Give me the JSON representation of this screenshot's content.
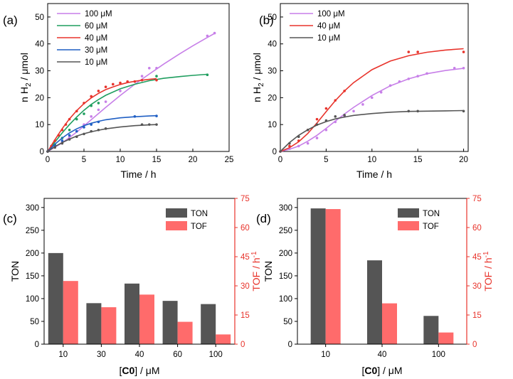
{
  "figure": {
    "colors": {
      "100uM": "#c77fe8",
      "60uM": "#1f9e5f",
      "40uM": "#e8332b",
      "30uM": "#1f5fc4",
      "10uM": "#555555",
      "TON": "#555555",
      "TOF": "#ff6b6b",
      "tof_axis": "#e8332b"
    }
  },
  "chart_data": [
    {
      "panel": "(a)",
      "type": "line",
      "xlabel": "Time / h",
      "ylabel_main": "n H",
      "ylabel_sub": "2",
      "ylabel_tail": " / μmol",
      "xlim": [
        0,
        25
      ],
      "ylim": [
        0,
        55
      ],
      "xticks": [
        "0",
        "5",
        "10",
        "15",
        "20",
        "25"
      ],
      "yticks": [
        "0",
        "10",
        "20",
        "30",
        "40",
        "50"
      ],
      "xtick_values": [
        0,
        5,
        10,
        15,
        20,
        25
      ],
      "ytick_values": [
        0,
        10,
        20,
        30,
        40,
        50
      ],
      "legend_position": "top-left",
      "series": [
        {
          "name": "100 μM",
          "color_key": "100uM",
          "x": [
            0,
            1,
            2,
            3,
            4,
            5,
            6,
            7,
            8,
            10,
            12,
            13,
            14,
            15,
            22,
            23
          ],
          "y": [
            0,
            1.5,
            3.5,
            5.5,
            7.5,
            10,
            13,
            15.5,
            18.5,
            22.5,
            26,
            28,
            31,
            31,
            43,
            44
          ],
          "fit_x": [
            0,
            2,
            4,
            6,
            8,
            10,
            12,
            14,
            16,
            18,
            20,
            22,
            23
          ],
          "fit_y": [
            0,
            3.2,
            7.2,
            11.8,
            16.4,
            20.8,
            25,
            28.8,
            32.5,
            36,
            39.3,
            42.4,
            43.9
          ]
        },
        {
          "name": "60 μM",
          "color_key": "60uM",
          "x": [
            0,
            1,
            2,
            3,
            4,
            5,
            6,
            7,
            15,
            22
          ],
          "y": [
            0,
            2.5,
            5,
            8,
            12,
            14,
            17,
            18,
            28,
            28.5
          ],
          "fit_x": [
            0,
            1,
            2,
            3,
            4,
            5,
            6,
            7,
            8,
            10,
            12,
            14,
            16,
            18,
            20,
            22
          ],
          "fit_y": [
            0,
            3.5,
            6.9,
            10,
            12.8,
            15.3,
            17.5,
            19.3,
            20.9,
            23.3,
            25,
            26.3,
            27.2,
            27.8,
            28.3,
            28.7
          ]
        },
        {
          "name": "40 μM",
          "color_key": "40uM",
          "x": [
            0,
            0.5,
            1,
            1.5,
            2,
            2.5,
            3,
            4,
            5,
            6,
            7,
            8,
            9,
            10,
            11,
            12,
            13,
            15
          ],
          "y": [
            0,
            2,
            4,
            6,
            8,
            10,
            12,
            15,
            18,
            20.5,
            22.5,
            24,
            25,
            25.5,
            26,
            26,
            26.5,
            26.5
          ],
          "fit_x": [
            0,
            1,
            2,
            3,
            4,
            5,
            6,
            7,
            8,
            9,
            10,
            11,
            12,
            13,
            14,
            15
          ],
          "fit_y": [
            0,
            4.4,
            8.5,
            12.1,
            15.2,
            17.8,
            19.9,
            21.6,
            23,
            24,
            24.9,
            25.6,
            26.1,
            26.5,
            26.8,
            27.1
          ]
        },
        {
          "name": "30 μM",
          "color_key": "30uM",
          "x": [
            0,
            1,
            2,
            3,
            4,
            5,
            6,
            7,
            12,
            15
          ],
          "y": [
            0,
            2,
            4,
            6,
            7.5,
            9,
            10,
            11,
            13,
            13.2
          ],
          "fit_x": [
            0,
            1,
            2,
            3,
            4,
            5,
            6,
            7,
            8,
            10,
            12,
            14,
            15
          ],
          "fit_y": [
            0,
            2.7,
            5,
            6.9,
            8.4,
            9.6,
            10.5,
            11.2,
            11.8,
            12.5,
            12.9,
            13.2,
            13.3
          ]
        },
        {
          "name": "10 μM",
          "color_key": "10uM",
          "x": [
            0,
            1,
            2,
            3,
            4,
            5,
            6,
            7,
            8,
            13,
            14,
            15
          ],
          "y": [
            0,
            1.5,
            3,
            4.5,
            5.5,
            6.5,
            7.5,
            8,
            8.5,
            10,
            10,
            10
          ],
          "fit_x": [
            0,
            1,
            2,
            3,
            4,
            5,
            6,
            7,
            8,
            10,
            12,
            14,
            15
          ],
          "fit_y": [
            0,
            1.8,
            3.3,
            4.6,
            5.7,
            6.6,
            7.3,
            7.9,
            8.4,
            9.1,
            9.6,
            9.9,
            10
          ]
        }
      ]
    },
    {
      "panel": "(b)",
      "type": "line",
      "xlabel": "Time / h",
      "ylabel_main": "n H",
      "ylabel_sub": "2",
      "ylabel_tail": " / μmol",
      "xlim": [
        0,
        20.5
      ],
      "ylim": [
        0,
        55
      ],
      "xticks": [
        "0",
        "5",
        "10",
        "15",
        "20"
      ],
      "yticks": [
        "0",
        "10",
        "20",
        "30",
        "40",
        "50"
      ],
      "xtick_values": [
        0,
        5,
        10,
        15,
        20
      ],
      "ytick_values": [
        0,
        10,
        20,
        30,
        40,
        50
      ],
      "legend_position": "top-left",
      "series": [
        {
          "name": "100 μM",
          "color_key": "100uM",
          "x": [
            0,
            1,
            2,
            3,
            4,
            5,
            6,
            7,
            8,
            9,
            10,
            11,
            12,
            13,
            14,
            15,
            16,
            19,
            20
          ],
          "y": [
            0,
            1,
            2,
            3,
            5,
            8,
            11,
            13,
            15,
            17.5,
            20,
            22,
            24.5,
            26,
            27,
            28,
            29,
            31,
            31
          ],
          "fit_x": [
            0,
            1,
            2,
            3,
            4,
            5,
            6,
            7,
            8,
            10,
            12,
            14,
            16,
            18,
            20
          ],
          "fit_y": [
            0,
            0.8,
            2,
            3.8,
            6,
            8.6,
            11.3,
            13.9,
            16.4,
            20.8,
            24.4,
            27,
            28.9,
            30.1,
            30.9
          ]
        },
        {
          "name": "40 μM",
          "color_key": "40uM",
          "x": [
            0,
            1,
            2,
            3,
            4,
            5,
            6,
            7,
            14,
            15,
            20
          ],
          "y": [
            0,
            2,
            4,
            8,
            12,
            16,
            19,
            22.5,
            37,
            37,
            37
          ],
          "fit_x": [
            0,
            1,
            2,
            3,
            4,
            5,
            6,
            7,
            8,
            10,
            12,
            14,
            16,
            18,
            20
          ],
          "fit_y": [
            0,
            1.4,
            3.6,
            6.7,
            10.6,
            14.8,
            18.9,
            22.5,
            25.6,
            30.4,
            33.6,
            35.6,
            36.9,
            37.7,
            38.2
          ]
        },
        {
          "name": "10 μM",
          "color_key": "10uM",
          "x": [
            0,
            1,
            2,
            3,
            4,
            5,
            6,
            7,
            14,
            15,
            20
          ],
          "y": [
            0,
            3,
            5.5,
            8,
            10,
            11.5,
            13,
            13.5,
            15,
            15,
            15
          ],
          "fit_x": [
            0,
            1,
            2,
            3,
            4,
            5,
            6,
            7,
            8,
            10,
            12,
            14,
            16,
            18,
            20
          ],
          "fit_y": [
            0,
            3.3,
            6,
            8.1,
            9.8,
            11.1,
            12.1,
            12.8,
            13.4,
            14.1,
            14.6,
            14.9,
            15,
            15.1,
            15.2
          ]
        }
      ]
    },
    {
      "panel": "(c)",
      "type": "bar",
      "xlabel_pre": "[",
      "xlabel_bold": "C0",
      "xlabel_post": "] / μM",
      "ylabel_left": "TON",
      "ylabel_right_main": "TOF / h",
      "ylabel_right_sup": "-1",
      "categories": [
        "10",
        "30",
        "40",
        "60",
        "100"
      ],
      "series": [
        {
          "name": "TON",
          "axis": "left",
          "color_key": "TON",
          "values": [
            200,
            90,
            133,
            95,
            88
          ]
        },
        {
          "name": "TOF",
          "axis": "right",
          "color_key": "TOF",
          "values": [
            32.5,
            19,
            25.5,
            11.5,
            5
          ]
        }
      ],
      "ylim_left": [
        0,
        320
      ],
      "ylim_right": [
        0,
        75
      ],
      "yticks_left": [
        "0",
        "50",
        "100",
        "150",
        "200",
        "250",
        "300"
      ],
      "ytick_values_left": [
        0,
        50,
        100,
        150,
        200,
        250,
        300
      ],
      "yticks_right": [
        "0",
        "15",
        "30",
        "45",
        "60",
        "75"
      ],
      "ytick_values_right": [
        0,
        15,
        30,
        45,
        60,
        75
      ],
      "legend_position": "top-right"
    },
    {
      "panel": "(d)",
      "type": "bar",
      "xlabel_pre": "[",
      "xlabel_bold": "C0",
      "xlabel_post": "] / μM",
      "ylabel_left": "TON",
      "ylabel_right_main": "TOF / h",
      "ylabel_right_sup": "-1",
      "categories": [
        "10",
        "40",
        "100"
      ],
      "series": [
        {
          "name": "TON",
          "axis": "left",
          "color_key": "TON",
          "values": [
            298,
            184,
            62
          ]
        },
        {
          "name": "TOF",
          "axis": "right",
          "color_key": "TOF",
          "values": [
            69.5,
            21,
            6
          ]
        }
      ],
      "ylim_left": [
        0,
        320
      ],
      "ylim_right": [
        0,
        75
      ],
      "yticks_left": [
        "0",
        "50",
        "100",
        "150",
        "200",
        "250",
        "300"
      ],
      "ytick_values_left": [
        0,
        50,
        100,
        150,
        200,
        250,
        300
      ],
      "yticks_right": [
        "0",
        "15",
        "30",
        "45",
        "60",
        "75"
      ],
      "ytick_values_right": [
        0,
        15,
        30,
        45,
        60,
        75
      ],
      "legend_position": "top-right"
    }
  ]
}
